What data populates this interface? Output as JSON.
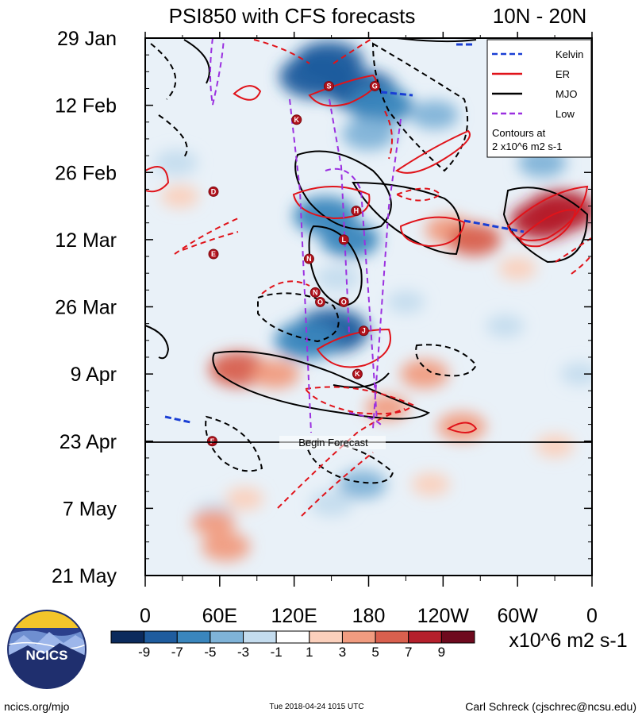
{
  "chart_data": {
    "type": "heatmap",
    "title": "PSI850 with CFS forecasts",
    "region": "10N - 20N",
    "x_ticks": [
      "0",
      "60E",
      "120E",
      "180",
      "120W",
      "60W",
      "0"
    ],
    "x_range_deg": [
      0,
      360
    ],
    "y_ticks": [
      "29 Jan",
      "12 Feb",
      "26 Feb",
      "12 Mar",
      "26 Mar",
      "9 Apr",
      "23 Apr",
      "7 May",
      "21 May"
    ],
    "y_range_days": [
      0,
      112
    ],
    "forecast_day": 84,
    "forecast_label": "Begin Forecast",
    "colorbar": {
      "labels": [
        "-9",
        "-7",
        "-5",
        "-3",
        "-1",
        "1",
        "3",
        "5",
        "7",
        "9"
      ],
      "colors": [
        "#0b2a5c",
        "#1f5c9e",
        "#3a86bd",
        "#7fb3d8",
        "#c4dcee",
        "#ffffff",
        "#fbd0bc",
        "#f19c80",
        "#d9604e",
        "#b5202c",
        "#6e0a1e"
      ],
      "units": "x10^6 m2 s-1"
    },
    "legend": [
      {
        "name": "Kelvin",
        "color": "#1a3fd4",
        "dash": "dashed"
      },
      {
        "name": "ER",
        "color": "#e0131a",
        "dash": "solid"
      },
      {
        "name": "MJO",
        "color": "#000000",
        "dash": "solid"
      },
      {
        "name": "Low",
        "color": "#9b30e0",
        "dash": "dashed"
      }
    ],
    "legend_note": [
      "Contours at",
      "2 x10^6 m2 s-1"
    ],
    "anomaly_blobs": [
      {
        "lon": 148,
        "day": 5,
        "value": -8
      },
      {
        "lon": 138,
        "day": 8,
        "value": -9
      },
      {
        "lon": 175,
        "day": 11,
        "value": -8
      },
      {
        "lon": 190,
        "day": 14,
        "value": -7
      },
      {
        "lon": 180,
        "day": 20,
        "value": -5
      },
      {
        "lon": 233,
        "day": 16,
        "value": -4
      },
      {
        "lon": 25,
        "day": 26,
        "value": -3
      },
      {
        "lon": 145,
        "day": 37,
        "value": -7
      },
      {
        "lon": 165,
        "day": 42,
        "value": -6
      },
      {
        "lon": 155,
        "day": 50,
        "value": -3
      },
      {
        "lon": 150,
        "day": 61,
        "value": -9
      },
      {
        "lon": 130,
        "day": 63,
        "value": -7
      },
      {
        "lon": 175,
        "day": 93,
        "value": -4
      },
      {
        "lon": 150,
        "day": 97,
        "value": -3
      },
      {
        "lon": 55,
        "day": 99,
        "value": -2
      },
      {
        "lon": 320,
        "day": 26,
        "value": -4
      },
      {
        "lon": 80,
        "day": 68,
        "value": -2
      },
      {
        "lon": 350,
        "day": 70,
        "value": -2
      },
      {
        "lon": 290,
        "day": 60,
        "value": -2
      },
      {
        "lon": 210,
        "day": 55,
        "value": -2
      },
      {
        "lon": 245,
        "day": 40,
        "value": 4
      },
      {
        "lon": 265,
        "day": 42,
        "value": 5
      },
      {
        "lon": 320,
        "day": 38,
        "value": 7
      },
      {
        "lon": 335,
        "day": 36,
        "value": 8
      },
      {
        "lon": 75,
        "day": 69,
        "value": 6
      },
      {
        "lon": 105,
        "day": 70,
        "value": 4
      },
      {
        "lon": 225,
        "day": 70,
        "value": 4
      },
      {
        "lon": 255,
        "day": 81,
        "value": 4
      },
      {
        "lon": 55,
        "day": 101,
        "value": 3
      },
      {
        "lon": 65,
        "day": 106,
        "value": 4
      },
      {
        "lon": 80,
        "day": 96,
        "value": 2
      },
      {
        "lon": 28,
        "day": 33,
        "value": 2
      },
      {
        "lon": 300,
        "day": 48,
        "value": 2
      },
      {
        "lon": 195,
        "day": 77,
        "value": 3
      },
      {
        "lon": 230,
        "day": 93,
        "value": 2
      },
      {
        "lon": 330,
        "day": 85,
        "value": 2
      }
    ],
    "storm_markers": [
      {
        "label": "S",
        "lon": 148,
        "day": 10
      },
      {
        "label": "G",
        "lon": 185,
        "day": 10
      },
      {
        "label": "K",
        "lon": 122,
        "day": 17
      },
      {
        "label": "D",
        "lon": 55,
        "day": 32
      },
      {
        "label": "H",
        "lon": 170,
        "day": 36
      },
      {
        "label": "L",
        "lon": 160,
        "day": 42
      },
      {
        "label": "E",
        "lon": 55,
        "day": 45
      },
      {
        "label": "N",
        "lon": 132,
        "day": 46
      },
      {
        "label": "N",
        "lon": 137,
        "day": 53
      },
      {
        "label": "O",
        "lon": 141,
        "day": 55
      },
      {
        "label": "O",
        "lon": 160,
        "day": 55
      },
      {
        "label": "J",
        "lon": 176,
        "day": 61
      },
      {
        "label": "K",
        "lon": 171,
        "day": 70
      },
      {
        "label": "F",
        "lon": 54,
        "day": 84
      }
    ]
  },
  "footer": {
    "left": "ncics.org/mjo",
    "center": "Tue 2018-04-24 1015 UTC",
    "right": "Carl Schreck (cjschrec@ncsu.edu)"
  },
  "logo": {
    "text": "NCICS"
  }
}
